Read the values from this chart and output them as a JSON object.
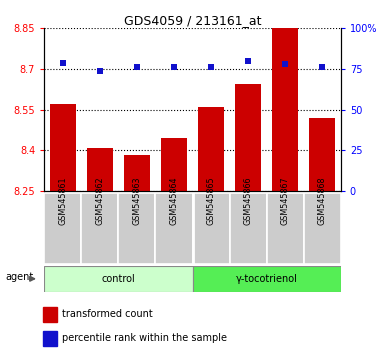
{
  "title": "GDS4059 / 213161_at",
  "samples": [
    "GSM545861",
    "GSM545862",
    "GSM545863",
    "GSM545864",
    "GSM545865",
    "GSM545866",
    "GSM545867",
    "GSM545868"
  ],
  "bar_values": [
    8.57,
    8.41,
    8.385,
    8.445,
    8.56,
    8.645,
    8.875,
    8.52
  ],
  "bar_baseline": 8.25,
  "percentile_values": [
    79,
    74,
    76,
    76,
    76,
    80,
    78,
    76
  ],
  "ylim_left": [
    8.25,
    8.85
  ],
  "ylim_right": [
    0,
    100
  ],
  "yticks_left": [
    8.25,
    8.4,
    8.55,
    8.7,
    8.85
  ],
  "ytick_labels_left": [
    "8.25",
    "8.4",
    "8.55",
    "8.7",
    "8.85"
  ],
  "yticks_right": [
    0,
    25,
    50,
    75,
    100
  ],
  "ytick_labels_right": [
    "0",
    "25",
    "50",
    "75",
    "100%"
  ],
  "bar_color": "#cc0000",
  "dot_color": "#1111cc",
  "bar_width": 0.7,
  "control_label": "control",
  "treatment_label": "γ-tocotrienol",
  "agent_label": "agent",
  "legend_bar_label": "transformed count",
  "legend_dot_label": "percentile rank within the sample",
  "control_bg": "#ccffcc",
  "treatment_bg": "#55ee55",
  "sample_bg": "#cccccc",
  "n_control": 4,
  "n_treatment": 4
}
